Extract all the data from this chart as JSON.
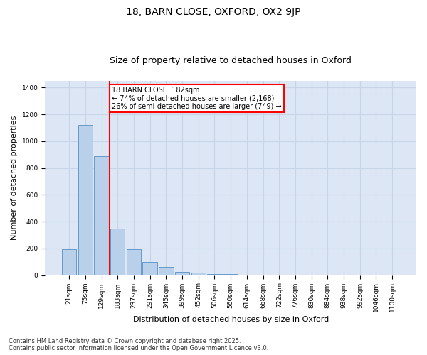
{
  "title1": "18, BARN CLOSE, OXFORD, OX2 9JP",
  "title2": "Size of property relative to detached houses in Oxford",
  "xlabel": "Distribution of detached houses by size in Oxford",
  "ylabel": "Number of detached properties",
  "categories": [
    "21sqm",
    "75sqm",
    "129sqm",
    "183sqm",
    "237sqm",
    "291sqm",
    "345sqm",
    "399sqm",
    "452sqm",
    "506sqm",
    "560sqm",
    "614sqm",
    "668sqm",
    "722sqm",
    "776sqm",
    "830sqm",
    "884sqm",
    "938sqm",
    "992sqm",
    "1046sqm",
    "1100sqm"
  ],
  "values": [
    195,
    1120,
    890,
    350,
    195,
    100,
    60,
    25,
    20,
    10,
    8,
    5,
    3,
    2,
    2,
    1,
    1,
    1,
    0,
    0,
    0
  ],
  "bar_color": "#b8d0ea",
  "bar_edge_color": "#6699cc",
  "red_line_index": 3,
  "annotation_text": "18 BARN CLOSE: 182sqm\n← 74% of detached houses are smaller (2,168)\n26% of semi-detached houses are larger (749) →",
  "annotation_box_color": "white",
  "annotation_box_edge_color": "red",
  "red_line_color": "red",
  "ylim": [
    0,
    1450
  ],
  "yticks": [
    0,
    200,
    400,
    600,
    800,
    1000,
    1200,
    1400
  ],
  "grid_color": "#c8d4e8",
  "bg_color": "#dce6f5",
  "footer1": "Contains HM Land Registry data © Crown copyright and database right 2025.",
  "footer2": "Contains public sector information licensed under the Open Government Licence v3.0.",
  "title_fontsize": 10,
  "subtitle_fontsize": 9,
  "tick_fontsize": 6.5,
  "ylabel_fontsize": 8,
  "xlabel_fontsize": 8,
  "annotation_fontsize": 7,
  "footer_fontsize": 6
}
